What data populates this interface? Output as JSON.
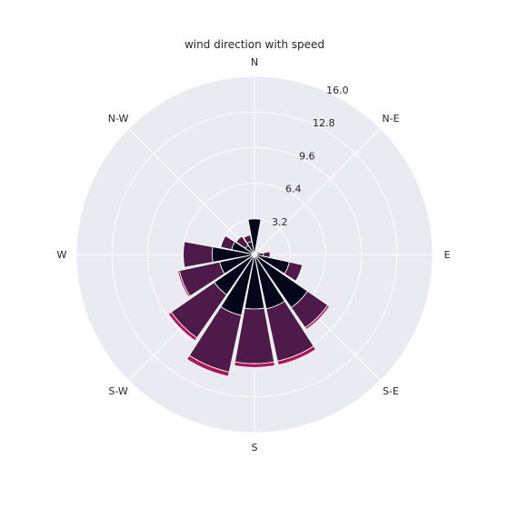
{
  "chart_data": {
    "type": "windrose",
    "title": "wind direction with speed",
    "directions": [
      "N",
      "N-E",
      "E",
      "S-E",
      "S",
      "S-W",
      "W",
      "N-W"
    ],
    "direction_bins": 16,
    "radial_ticks": [
      "3.2",
      "6.4",
      "9.6",
      "12.8",
      "16.0"
    ],
    "radial_tick_values": [
      3.2,
      6.4,
      9.6,
      12.8,
      16.0
    ],
    "rmax": 16.0,
    "series": [
      {
        "color": "#03051a",
        "values": [
          3.2,
          0.35,
          0.3,
          0.3,
          0.8,
          3.2,
          5.8,
          5.0,
          4.9,
          5.6,
          4.4,
          3.2,
          3.8,
          2.1,
          1.0,
          1.2
        ]
      },
      {
        "color": "#4d1a4a",
        "values": [
          0.0,
          0.0,
          0.0,
          0.2,
          0.6,
          1.2,
          2.2,
          4.8,
          4.9,
          5.2,
          4.7,
          3.7,
          2.6,
          1.0,
          1.0,
          0.6
        ]
      },
      {
        "color": "#ad1759",
        "values": [
          0.0,
          0.0,
          0.0,
          0.0,
          0.0,
          0.0,
          0.2,
          0.35,
          0.35,
          0.4,
          0.3,
          0.15,
          0.0,
          0.0,
          0.0,
          0.0
        ]
      }
    ],
    "grid": true
  }
}
